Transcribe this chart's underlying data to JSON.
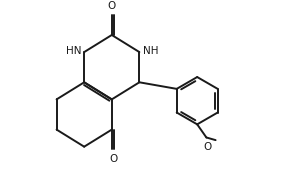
{
  "bg_color": "#ffffff",
  "line_color": "#1a1a1a",
  "text_color": "#1a1a1a",
  "font_size": 7.5,
  "line_width": 1.4,
  "figsize": [
    2.84,
    1.96
  ],
  "dpi": 100,
  "xlim": [
    0,
    10
  ],
  "ylim": [
    0,
    7
  ]
}
